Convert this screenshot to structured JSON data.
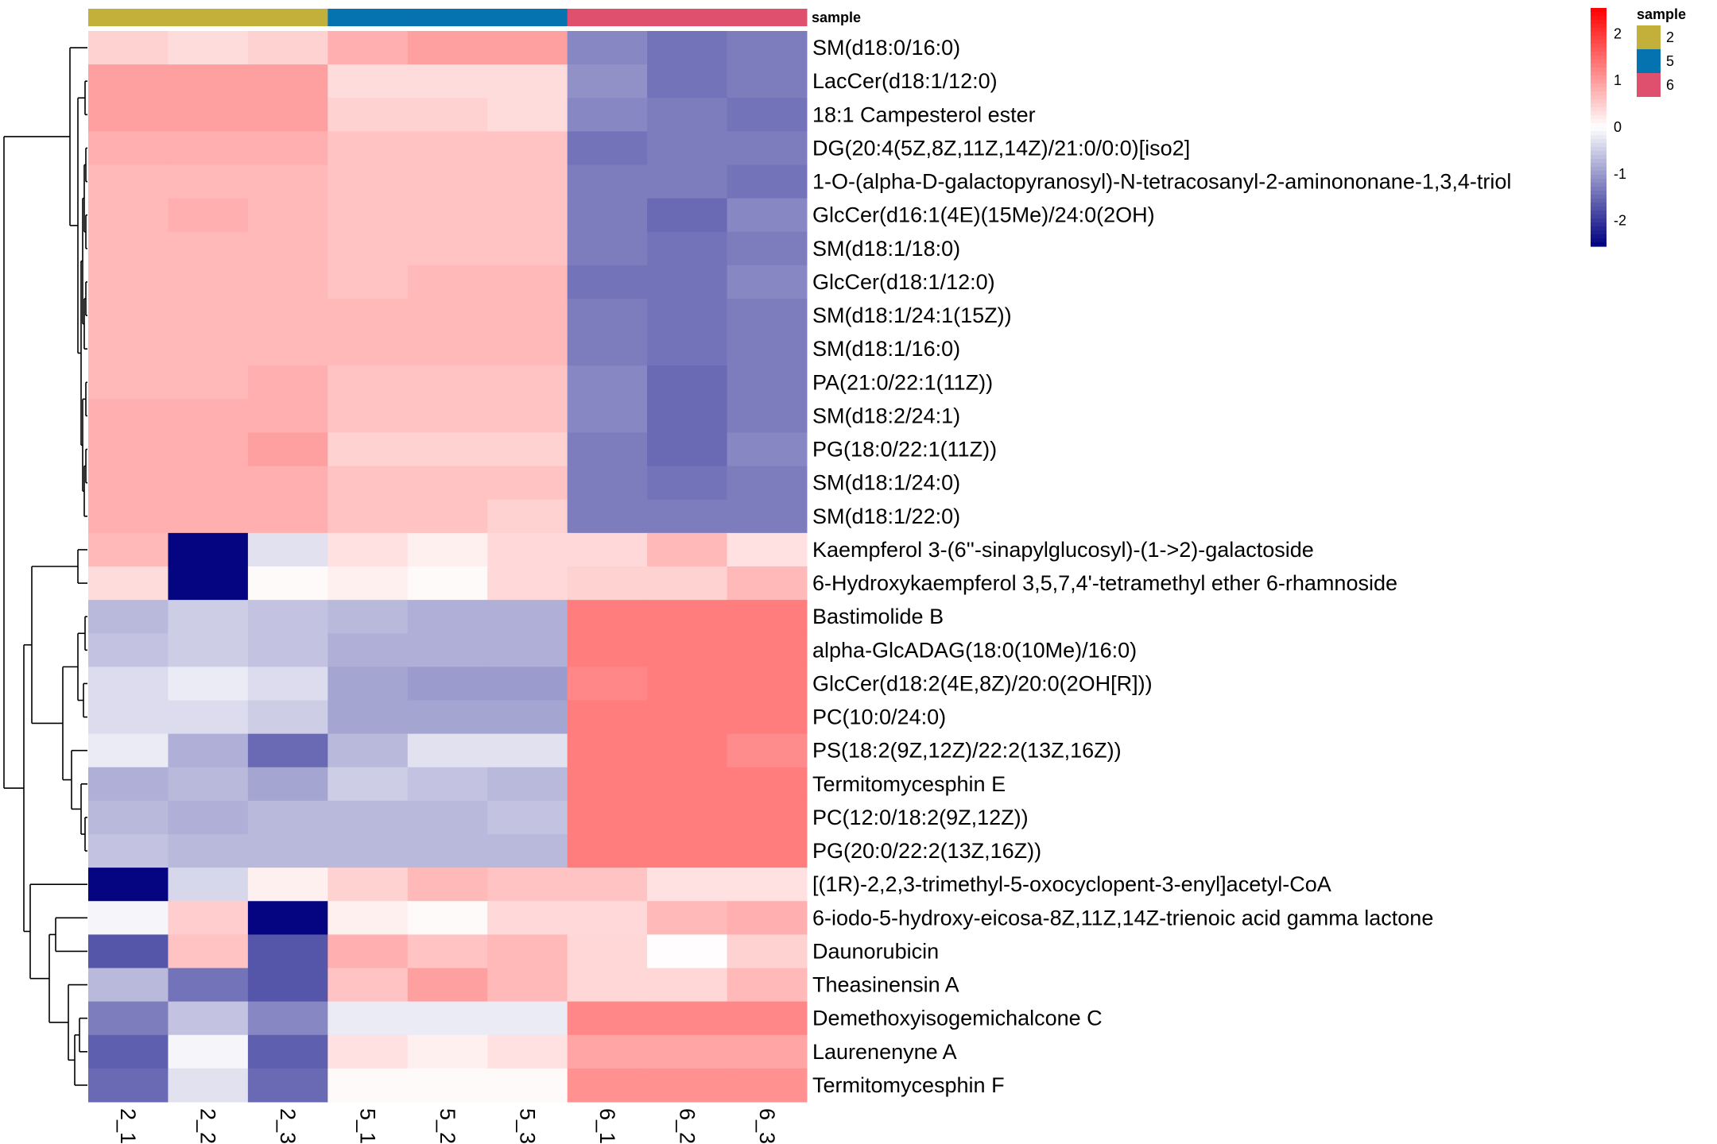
{
  "chart_data": {
    "type": "heatmap",
    "title": "",
    "columns": [
      "2_1",
      "2_2",
      "2_3",
      "5_1",
      "5_2",
      "5_3",
      "6_1",
      "6_2",
      "6_3"
    ],
    "column_groups": [
      "2",
      "2",
      "2",
      "5",
      "5",
      "5",
      "6",
      "6",
      "6"
    ],
    "annotation": {
      "title": "sample",
      "levels": [
        {
          "label": "2",
          "color": "#c3b03b"
        },
        {
          "label": "5",
          "color": "#0673b1"
        },
        {
          "label": "6",
          "color": "#df506f"
        }
      ]
    },
    "colorbar": {
      "ticks": [
        2,
        1,
        0,
        -1,
        -2
      ],
      "tick_labels": [
        "2",
        "1",
        "0",
        "-1",
        "-2"
      ],
      "range": [
        -2.55,
        2.55
      ],
      "low_color": "#000080",
      "mid_color": "#ffffff",
      "high_color": "#ff0000"
    },
    "rows": [
      {
        "label": "SM(d18:0/16:0)",
        "values": [
          0.45,
          0.35,
          0.45,
          0.8,
          0.95,
          0.95,
          -1.2,
          -1.4,
          -1.3
        ]
      },
      {
        "label": "LacCer(d18:1/12:0)",
        "values": [
          0.95,
          0.95,
          0.95,
          0.35,
          0.35,
          0.35,
          -1.1,
          -1.4,
          -1.3
        ]
      },
      {
        "label": "18:1 Campesterol ester",
        "values": [
          0.95,
          0.95,
          0.95,
          0.45,
          0.45,
          0.35,
          -1.2,
          -1.3,
          -1.4
        ]
      },
      {
        "label": "DG(20:4(5Z,8Z,11Z,14Z)/21:0/0:0)[iso2]",
        "values": [
          0.8,
          0.8,
          0.8,
          0.6,
          0.6,
          0.6,
          -1.4,
          -1.3,
          -1.3
        ]
      },
      {
        "label": "1-O-(alpha-D-galactopyranosyl)-N-tetracosanyl-2-aminononane-1,3,4-triol",
        "values": [
          0.7,
          0.7,
          0.7,
          0.6,
          0.6,
          0.6,
          -1.3,
          -1.3,
          -1.4
        ]
      },
      {
        "label": "GlcCer(d16:1(4E)(15Me)/24:0(2OH)",
        "values": [
          0.7,
          0.8,
          0.7,
          0.6,
          0.6,
          0.6,
          -1.3,
          -1.5,
          -1.2
        ]
      },
      {
        "label": "SM(d18:1/18:0)",
        "values": [
          0.7,
          0.7,
          0.7,
          0.6,
          0.6,
          0.6,
          -1.3,
          -1.4,
          -1.3
        ]
      },
      {
        "label": "GlcCer(d18:1/12:0)",
        "values": [
          0.7,
          0.7,
          0.7,
          0.6,
          0.7,
          0.7,
          -1.4,
          -1.4,
          -1.2
        ]
      },
      {
        "label": "SM(d18:1/24:1(15Z))",
        "values": [
          0.7,
          0.7,
          0.7,
          0.7,
          0.7,
          0.7,
          -1.3,
          -1.4,
          -1.3
        ]
      },
      {
        "label": "SM(d18:1/16:0)",
        "values": [
          0.7,
          0.7,
          0.7,
          0.7,
          0.7,
          0.7,
          -1.3,
          -1.4,
          -1.3
        ]
      },
      {
        "label": "PA(21:0/22:1(11Z))",
        "values": [
          0.7,
          0.7,
          0.8,
          0.6,
          0.6,
          0.6,
          -1.2,
          -1.5,
          -1.3
        ]
      },
      {
        "label": "SM(d18:2/24:1)",
        "values": [
          0.8,
          0.8,
          0.8,
          0.6,
          0.6,
          0.6,
          -1.2,
          -1.5,
          -1.3
        ]
      },
      {
        "label": "PG(18:0/22:1(11Z))",
        "values": [
          0.8,
          0.8,
          0.95,
          0.45,
          0.45,
          0.45,
          -1.3,
          -1.5,
          -1.2
        ]
      },
      {
        "label": "SM(d18:1/24:0)",
        "values": [
          0.8,
          0.8,
          0.8,
          0.6,
          0.6,
          0.6,
          -1.3,
          -1.4,
          -1.3
        ]
      },
      {
        "label": "SM(d18:1/22:0)",
        "values": [
          0.8,
          0.8,
          0.8,
          0.6,
          0.6,
          0.45,
          -1.3,
          -1.3,
          -1.3
        ]
      },
      {
        "label": "Kaempferol 3-(6''-sinapylglucosyl)-(1->2)-galactoside",
        "values": [
          0.7,
          -2.5,
          -0.3,
          0.3,
          0.15,
          0.38,
          0.38,
          0.7,
          0.3
        ]
      },
      {
        "label": "6-Hydroxykaempferol 3,5,7,4'-tetramethyl ether 6-rhamnoside",
        "values": [
          0.35,
          -2.5,
          0.05,
          0.15,
          0.05,
          0.38,
          0.45,
          0.45,
          0.7
        ]
      },
      {
        "label": "Bastimolide B",
        "values": [
          -0.7,
          -0.5,
          -0.6,
          -0.7,
          -0.8,
          -0.8,
          1.3,
          1.3,
          1.3
        ]
      },
      {
        "label": "alpha-GlcADAG(18:0(10Me)/16:0)",
        "values": [
          -0.6,
          -0.5,
          -0.6,
          -0.8,
          -0.8,
          -0.8,
          1.3,
          1.3,
          1.3
        ]
      },
      {
        "label": "GlcCer(d18:2(4E,8Z)/20:0(2OH[R]))",
        "values": [
          -0.35,
          -0.2,
          -0.35,
          -0.9,
          -1.0,
          -1.0,
          1.2,
          1.3,
          1.3
        ]
      },
      {
        "label": "PC(10:0/24:0)",
        "values": [
          -0.35,
          -0.35,
          -0.5,
          -0.9,
          -0.9,
          -0.9,
          1.3,
          1.3,
          1.3
        ]
      },
      {
        "label": "PS(18:2(9Z,12Z)/22:2(13Z,16Z))",
        "values": [
          -0.2,
          -0.8,
          -1.5,
          -0.7,
          -0.3,
          -0.3,
          1.3,
          1.3,
          1.15
        ]
      },
      {
        "label": "Termitomycesphin E",
        "values": [
          -0.8,
          -0.7,
          -0.9,
          -0.5,
          -0.6,
          -0.7,
          1.3,
          1.3,
          1.3
        ]
      },
      {
        "label": "PC(12:0/18:2(9Z,12Z))",
        "values": [
          -0.7,
          -0.8,
          -0.7,
          -0.7,
          -0.7,
          -0.6,
          1.3,
          1.3,
          1.3
        ]
      },
      {
        "label": "PG(20:0/22:2(13Z,16Z))",
        "values": [
          -0.6,
          -0.7,
          -0.7,
          -0.7,
          -0.7,
          -0.7,
          1.3,
          1.3,
          1.3
        ]
      },
      {
        "label": "[(1R)-2,2,3-trimethyl-5-oxocyclopent-3-enyl]acetyl-CoA",
        "values": [
          -2.5,
          -0.4,
          0.15,
          0.45,
          0.7,
          0.6,
          0.6,
          0.3,
          0.3
        ]
      },
      {
        "label": "6-iodo-5-hydroxy-eicosa-8Z,11Z,14Z-trienoic acid gamma lactone",
        "values": [
          -0.1,
          0.5,
          -2.5,
          0.15,
          0.05,
          0.38,
          0.38,
          0.7,
          0.8
        ]
      },
      {
        "label": "Daunorubicin",
        "values": [
          -1.7,
          0.6,
          -1.7,
          0.8,
          0.6,
          0.7,
          0.4,
          0.02,
          0.45
        ]
      },
      {
        "label": "Theasinensin A",
        "values": [
          -0.7,
          -1.4,
          -1.7,
          0.6,
          0.95,
          0.7,
          0.4,
          0.4,
          0.7
        ]
      },
      {
        "label": "Demethoxyisogemichalcone C",
        "values": [
          -1.3,
          -0.6,
          -1.2,
          -0.2,
          -0.2,
          -0.2,
          1.2,
          1.2,
          1.2
        ]
      },
      {
        "label": "Laurenenyne A",
        "values": [
          -1.6,
          -0.1,
          -1.6,
          0.3,
          0.15,
          0.3,
          0.9,
          0.9,
          0.9
        ]
      },
      {
        "label": "Termitomycesphin F",
        "values": [
          -1.5,
          -0.3,
          -1.5,
          0.05,
          0.05,
          0.05,
          1.1,
          1.1,
          1.1
        ]
      }
    ],
    "row_dendrogram": true,
    "column_dendrogram": false,
    "legend_placement": "top-right"
  }
}
